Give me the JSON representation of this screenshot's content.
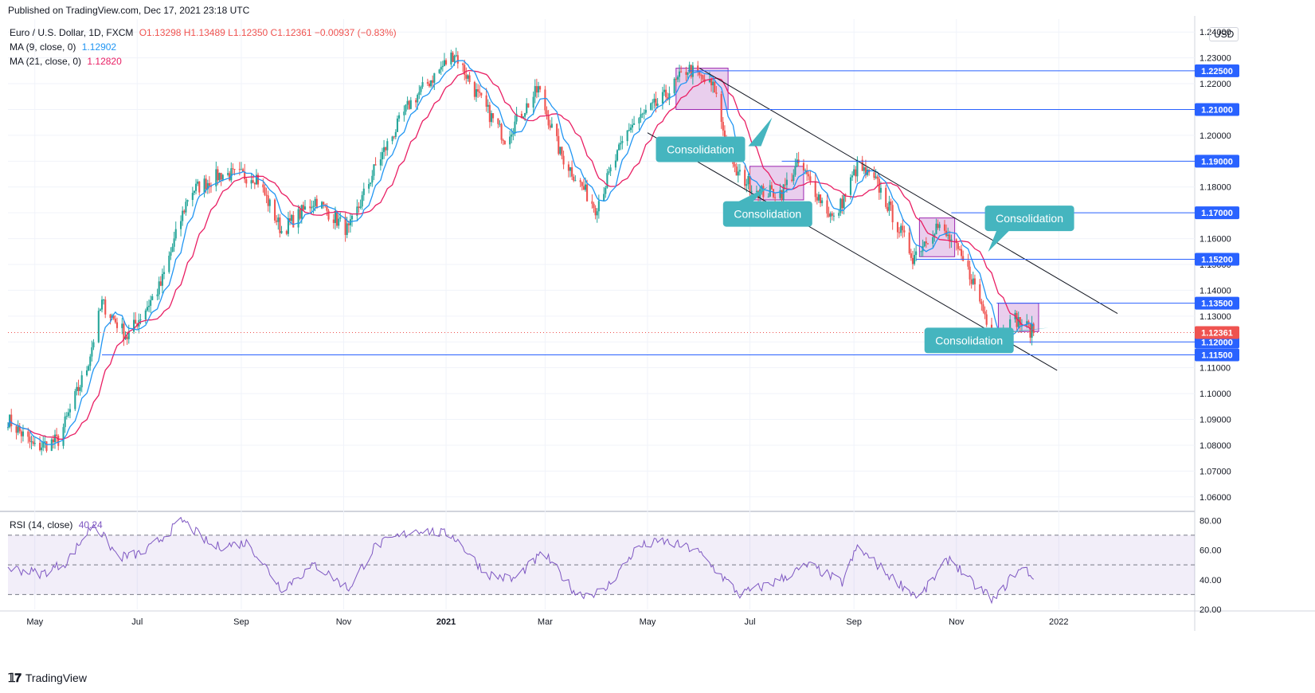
{
  "header": {
    "published": "Published on TradingView.com, Dec 17, 2021 23:18 UTC",
    "title": "Euro / U.S. Dollar, 1D, FXCM",
    "ohlc": "O1.13298 H1.13489 L1.12350 C1.12361 −0.00937 (−0.83%)",
    "ma9_label": "MA (9, close, 0)",
    "ma9_value": "1.12902",
    "ma21_label": "MA (21, close, 0)",
    "ma21_value": "1.12820",
    "currency": "USD"
  },
  "rsi_header": {
    "label": "RSI (14, close)",
    "value": "40.24"
  },
  "footer": {
    "brand": "TradingView"
  },
  "colors": {
    "up": "#26a69a",
    "down": "#ef5350",
    "ma9": "#2196f3",
    "ma21": "#e91e63",
    "level": "#2962ff",
    "rsi": "#7e57c2",
    "callout": "#45b5bf",
    "box": "#e1bee7"
  },
  "chart_data": [
    {
      "type": "candlestick",
      "symbol": "EURUSD",
      "ylim": [
        1.055,
        1.245
      ],
      "y_ticks": [
        "1.06000",
        "1.07000",
        "1.08000",
        "1.09000",
        "1.10000",
        "1.11000",
        "1.12000",
        "1.13000",
        "1.14000",
        "1.15000",
        "1.16000",
        "1.17000",
        "1.18000",
        "1.19000",
        "1.20000",
        "1.21000",
        "1.22000",
        "1.23000",
        "1.24000"
      ],
      "x_ticks": [
        "May",
        "Jul",
        "Sep",
        "Nov",
        "2021",
        "Mar",
        "May",
        "Jul",
        "Sep",
        "Nov",
        "2022"
      ],
      "price_path": [
        {
          "x": "2020-04-15",
          "y": 1.09
        },
        {
          "x": "2020-05-01",
          "y": 1.079
        },
        {
          "x": "2020-05-15",
          "y": 1.082
        },
        {
          "x": "2020-06-01",
          "y": 1.11
        },
        {
          "x": "2020-06-10",
          "y": 1.135
        },
        {
          "x": "2020-06-25",
          "y": 1.122
        },
        {
          "x": "2020-07-15",
          "y": 1.142
        },
        {
          "x": "2020-08-01",
          "y": 1.178
        },
        {
          "x": "2020-08-20",
          "y": 1.185
        },
        {
          "x": "2020-09-10",
          "y": 1.184
        },
        {
          "x": "2020-09-25",
          "y": 1.163
        },
        {
          "x": "2020-10-15",
          "y": 1.175
        },
        {
          "x": "2020-11-04",
          "y": 1.163
        },
        {
          "x": "2020-11-20",
          "y": 1.188
        },
        {
          "x": "2020-12-10",
          "y": 1.212
        },
        {
          "x": "2021-01-06",
          "y": 1.232
        },
        {
          "x": "2021-01-20",
          "y": 1.215
        },
        {
          "x": "2021-02-05",
          "y": 1.199
        },
        {
          "x": "2021-02-25",
          "y": 1.218
        },
        {
          "x": "2021-03-10",
          "y": 1.193
        },
        {
          "x": "2021-03-31",
          "y": 1.172
        },
        {
          "x": "2021-04-20",
          "y": 1.203
        },
        {
          "x": "2021-05-10",
          "y": 1.214
        },
        {
          "x": "2021-05-25",
          "y": 1.226
        },
        {
          "x": "2021-06-10",
          "y": 1.218
        },
        {
          "x": "2021-06-20",
          "y": 1.187
        },
        {
          "x": "2021-07-07",
          "y": 1.178
        },
        {
          "x": "2021-07-20",
          "y": 1.178
        },
        {
          "x": "2021-07-30",
          "y": 1.189
        },
        {
          "x": "2021-08-20",
          "y": 1.167
        },
        {
          "x": "2021-09-03",
          "y": 1.188
        },
        {
          "x": "2021-09-15",
          "y": 1.181
        },
        {
          "x": "2021-10-06",
          "y": 1.153
        },
        {
          "x": "2021-10-20",
          "y": 1.165
        },
        {
          "x": "2021-10-29",
          "y": 1.159
        },
        {
          "x": "2021-11-10",
          "y": 1.145
        },
        {
          "x": "2021-11-24",
          "y": 1.12
        },
        {
          "x": "2021-12-06",
          "y": 1.129
        },
        {
          "x": "2021-12-17",
          "y": 1.1236
        }
      ],
      "levels": [
        {
          "label": "1.22500",
          "value": 1.225,
          "from": "2021-05-25"
        },
        {
          "label": "1.21000",
          "value": 1.21,
          "from": "2021-06-15"
        },
        {
          "label": "1.19000",
          "value": 1.19,
          "from": "2021-07-20"
        },
        {
          "label": "1.17000",
          "value": 1.17,
          "from": "2021-10-29"
        },
        {
          "label": "1.15200",
          "value": 1.152,
          "from": "2021-10-08"
        },
        {
          "label": "1.13500",
          "value": 1.135,
          "from": "2021-11-25"
        },
        {
          "label": "1.12000",
          "value": 1.12,
          "from": "2021-11-25"
        },
        {
          "label": "1.11500",
          "value": 1.115,
          "from": "2020-06-10"
        }
      ],
      "last_price": {
        "label": "1.12361",
        "value": 1.12361
      },
      "channel": [
        {
          "from": {
            "x": "2021-06-01",
            "y": 1.226
          },
          "to": {
            "x": "2022-02-05",
            "y": 1.131
          }
        },
        {
          "from": {
            "x": "2021-05-01",
            "y": 1.201
          },
          "to": {
            "x": "2021-12-31",
            "y": 1.109
          }
        }
      ],
      "consolidation_boxes": [
        {
          "x0": "2021-05-18",
          "x1": "2021-06-18",
          "y0": 1.21,
          "y1": 1.226
        },
        {
          "x0": "2021-07-01",
          "x1": "2021-08-02",
          "y0": 1.175,
          "y1": 1.188
        },
        {
          "x0": "2021-10-10",
          "x1": "2021-10-31",
          "y0": 1.153,
          "y1": 1.168
        },
        {
          "x0": "2021-11-26",
          "x1": "2021-12-20",
          "y0": 1.124,
          "y1": 1.135
        }
      ],
      "callouts": [
        {
          "text": "Consolidation",
          "x": "2021-05-06",
          "y": 1.1995
        },
        {
          "text": "Consolidation",
          "x": "2021-06-15",
          "y": 1.1745
        },
        {
          "text": "Consolidation",
          "x": "2021-11-18",
          "y": 1.1728
        },
        {
          "text": "Consolidation",
          "x": "2021-10-13",
          "y": 1.1255
        }
      ]
    },
    {
      "type": "line",
      "name": "RSI (14, close)",
      "ylim": [
        20,
        85
      ],
      "y_ticks": [
        "20.00",
        "40.00",
        "60.00",
        "80.00"
      ],
      "bands": {
        "upper": 70,
        "middle": 50,
        "lower": 30
      },
      "path": [
        {
          "x": "2020-04-15",
          "y": 48
        },
        {
          "x": "2020-05-05",
          "y": 44
        },
        {
          "x": "2020-05-20",
          "y": 52
        },
        {
          "x": "2020-06-05",
          "y": 78
        },
        {
          "x": "2020-06-20",
          "y": 55
        },
        {
          "x": "2020-07-05",
          "y": 58
        },
        {
          "x": "2020-07-28",
          "y": 80
        },
        {
          "x": "2020-08-15",
          "y": 62
        },
        {
          "x": "2020-09-05",
          "y": 65
        },
        {
          "x": "2020-09-25",
          "y": 34
        },
        {
          "x": "2020-10-15",
          "y": 50
        },
        {
          "x": "2020-11-04",
          "y": 34
        },
        {
          "x": "2020-11-20",
          "y": 63
        },
        {
          "x": "2020-12-15",
          "y": 74
        },
        {
          "x": "2021-01-05",
          "y": 70
        },
        {
          "x": "2021-01-25",
          "y": 44
        },
        {
          "x": "2021-02-10",
          "y": 40
        },
        {
          "x": "2021-02-28",
          "y": 58
        },
        {
          "x": "2021-03-20",
          "y": 30
        },
        {
          "x": "2021-04-05",
          "y": 32
        },
        {
          "x": "2021-04-25",
          "y": 62
        },
        {
          "x": "2021-05-10",
          "y": 66
        },
        {
          "x": "2021-05-30",
          "y": 60
        },
        {
          "x": "2021-06-25",
          "y": 30
        },
        {
          "x": "2021-07-15",
          "y": 38
        },
        {
          "x": "2021-08-05",
          "y": 50
        },
        {
          "x": "2021-08-25",
          "y": 38
        },
        {
          "x": "2021-09-03",
          "y": 62
        },
        {
          "x": "2021-09-25",
          "y": 40
        },
        {
          "x": "2021-10-10",
          "y": 28
        },
        {
          "x": "2021-10-28",
          "y": 55
        },
        {
          "x": "2021-11-10",
          "y": 38
        },
        {
          "x": "2021-11-24",
          "y": 26
        },
        {
          "x": "2021-12-05",
          "y": 44
        },
        {
          "x": "2021-12-12",
          "y": 48
        },
        {
          "x": "2021-12-17",
          "y": 40.24
        }
      ]
    }
  ]
}
